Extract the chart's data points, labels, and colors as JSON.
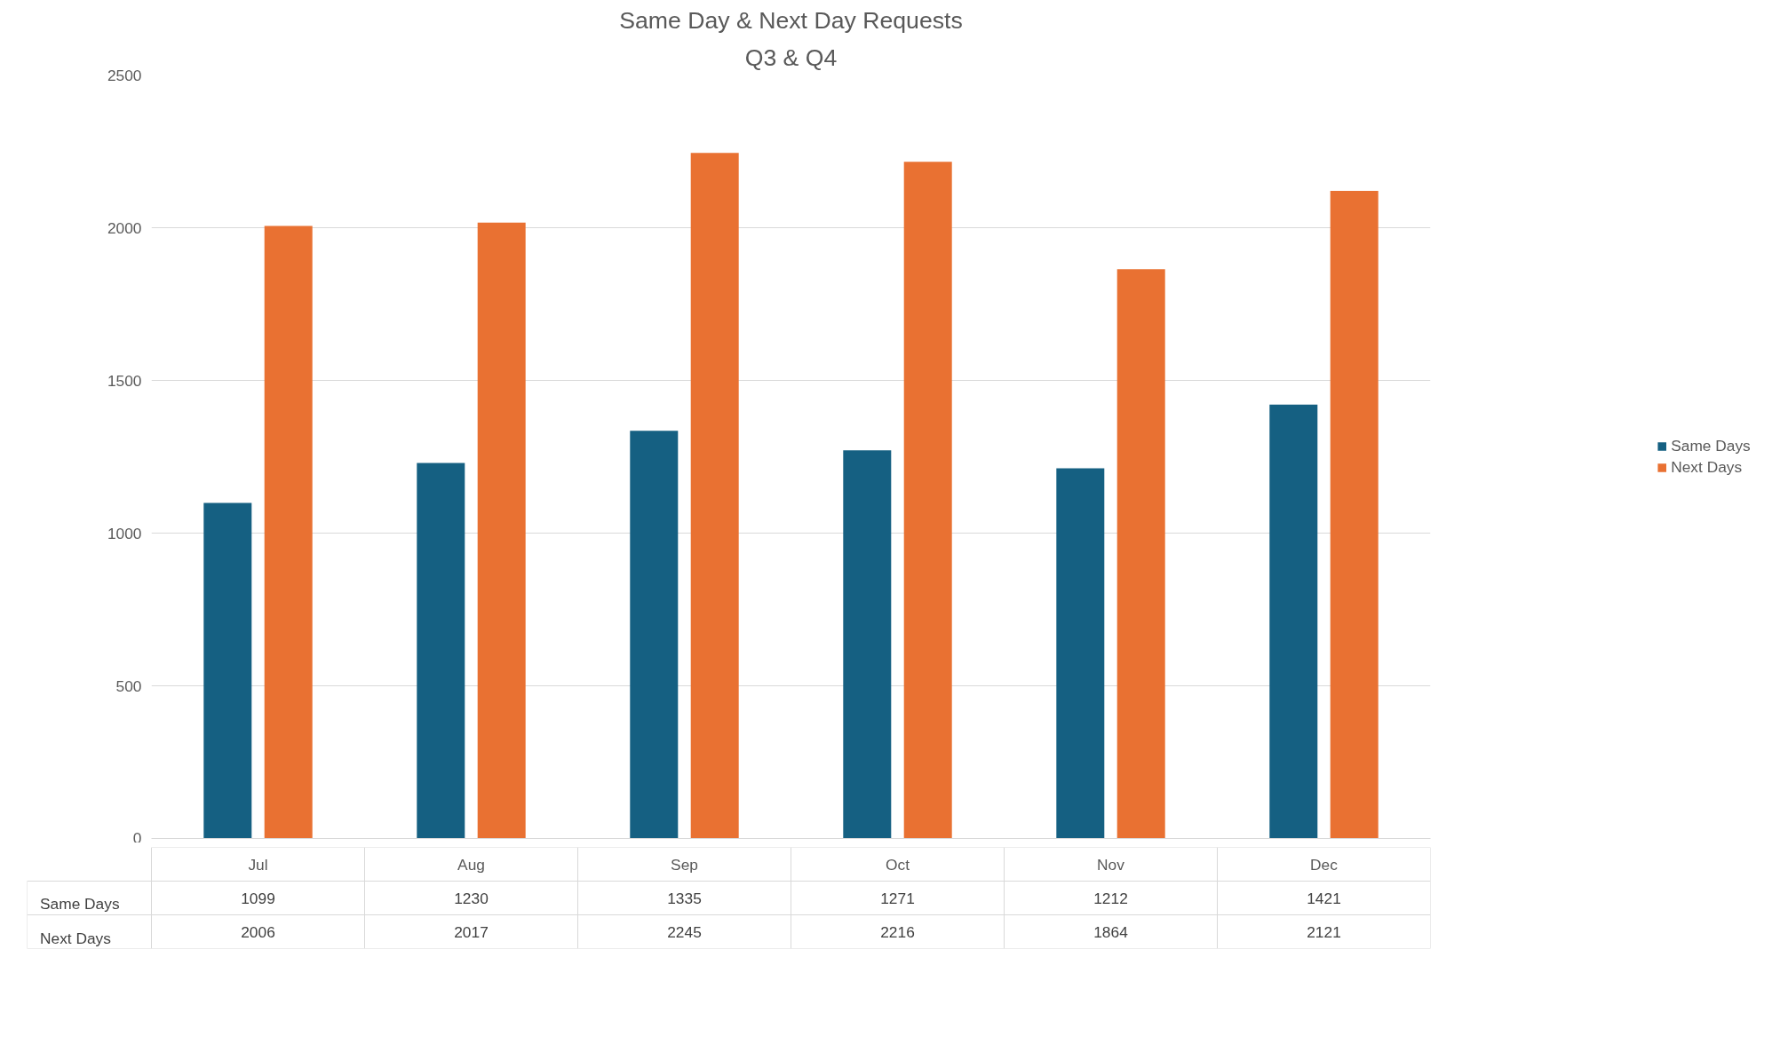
{
  "chart_data": {
    "type": "bar",
    "title": "Same Day & Next Day Requests",
    "subtitle": "Q3 & Q4",
    "categories": [
      "Jul",
      "Aug",
      "Sep",
      "Oct",
      "Nov",
      "Dec"
    ],
    "series": [
      {
        "name": "Same Days",
        "color": "#156082",
        "values": [
          1099,
          1230,
          1335,
          1271,
          1212,
          1421
        ]
      },
      {
        "name": "Next Days",
        "color": "#e97132",
        "values": [
          2006,
          2017,
          2245,
          2216,
          1864,
          2121
        ]
      }
    ],
    "ylim": [
      0,
      2500
    ],
    "yticks": [
      0,
      500,
      1000,
      1500,
      2000,
      2500
    ],
    "grid": "y",
    "legend": "right",
    "data_labels": true
  }
}
